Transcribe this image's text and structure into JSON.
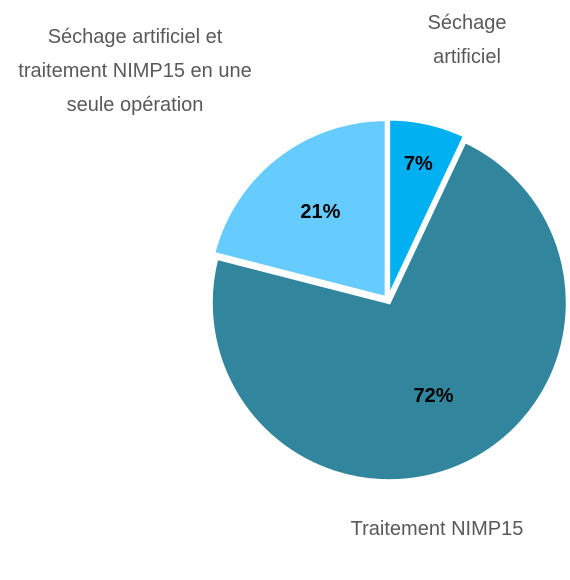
{
  "chart_data": {
    "type": "pie",
    "categories": [
      "Séchage artificiel",
      "Traitement NIMP15",
      "Séchage artificiel et traitement NIMP15 en une seule opération"
    ],
    "values": [
      7,
      72,
      21
    ],
    "value_labels": [
      "7%",
      "72%",
      "21%"
    ],
    "colors": [
      "#00b0f0",
      "#31859c",
      "#66ccff"
    ]
  }
}
